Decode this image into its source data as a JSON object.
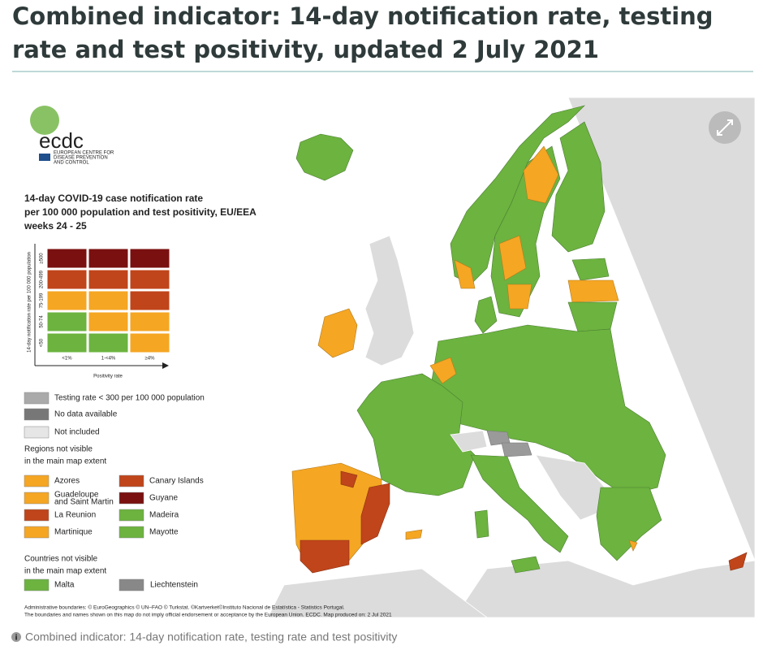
{
  "title_lines": [
    "Combined indicator: 14-day notification rate, testing",
    "rate and test positivity, updated 2 July 2021"
  ],
  "logo": {
    "name": "ecdc",
    "subtitle_lines": [
      "EUROPEAN CENTRE FOR",
      "DISEASE PREVENTION",
      "AND CONTROL"
    ]
  },
  "legend": {
    "title_lines": [
      "14-day COVID-19 case notification rate",
      "per 100 000 population and test positivity, EU/EEA",
      "weeks 24 - 25"
    ],
    "y_axis_label": "14-day notification rate per 100 000 population",
    "row_labels": [
      "≥500",
      "200-499",
      "75-199",
      "50-74",
      "<50"
    ],
    "column_labels": [
      "<1%",
      "1-<4%",
      "≥4%"
    ],
    "x_axis_label": "Positivity rate",
    "items": [
      "Testing rate < 300 per 100 000 population",
      "No data available",
      "Not included"
    ],
    "regions_heading_lines": [
      "Regions not visible",
      "in the main map extent"
    ],
    "regions": [
      [
        "Azores"
      ],
      [
        "Guadeloupe",
        "and Saint Martin"
      ],
      [
        "La Reunion"
      ],
      [
        "Martinique"
      ],
      [
        "Canary Islands"
      ],
      [
        "Guyane"
      ],
      [
        "Madeira"
      ],
      [
        "Mayotte"
      ]
    ],
    "countries_heading_lines": [
      "Countries not visible",
      "in the main map extent"
    ],
    "countries": [
      "Malta",
      "Liechtenstein"
    ]
  },
  "notes": [
    "Administrative boundaries: © EuroGeographics © UN–FAO © Turkstat. ©Kartverket©Instituto Nacional de Estatística - Statistics Portugal.",
    "The boundaries and names shown on this map do not imply official endorsement or acceptance by the European Union. ECDC. Map produced on: 2 Jul 2021"
  ],
  "caption": "Combined indicator: 14-day notification rate, testing rate and test positivity"
}
